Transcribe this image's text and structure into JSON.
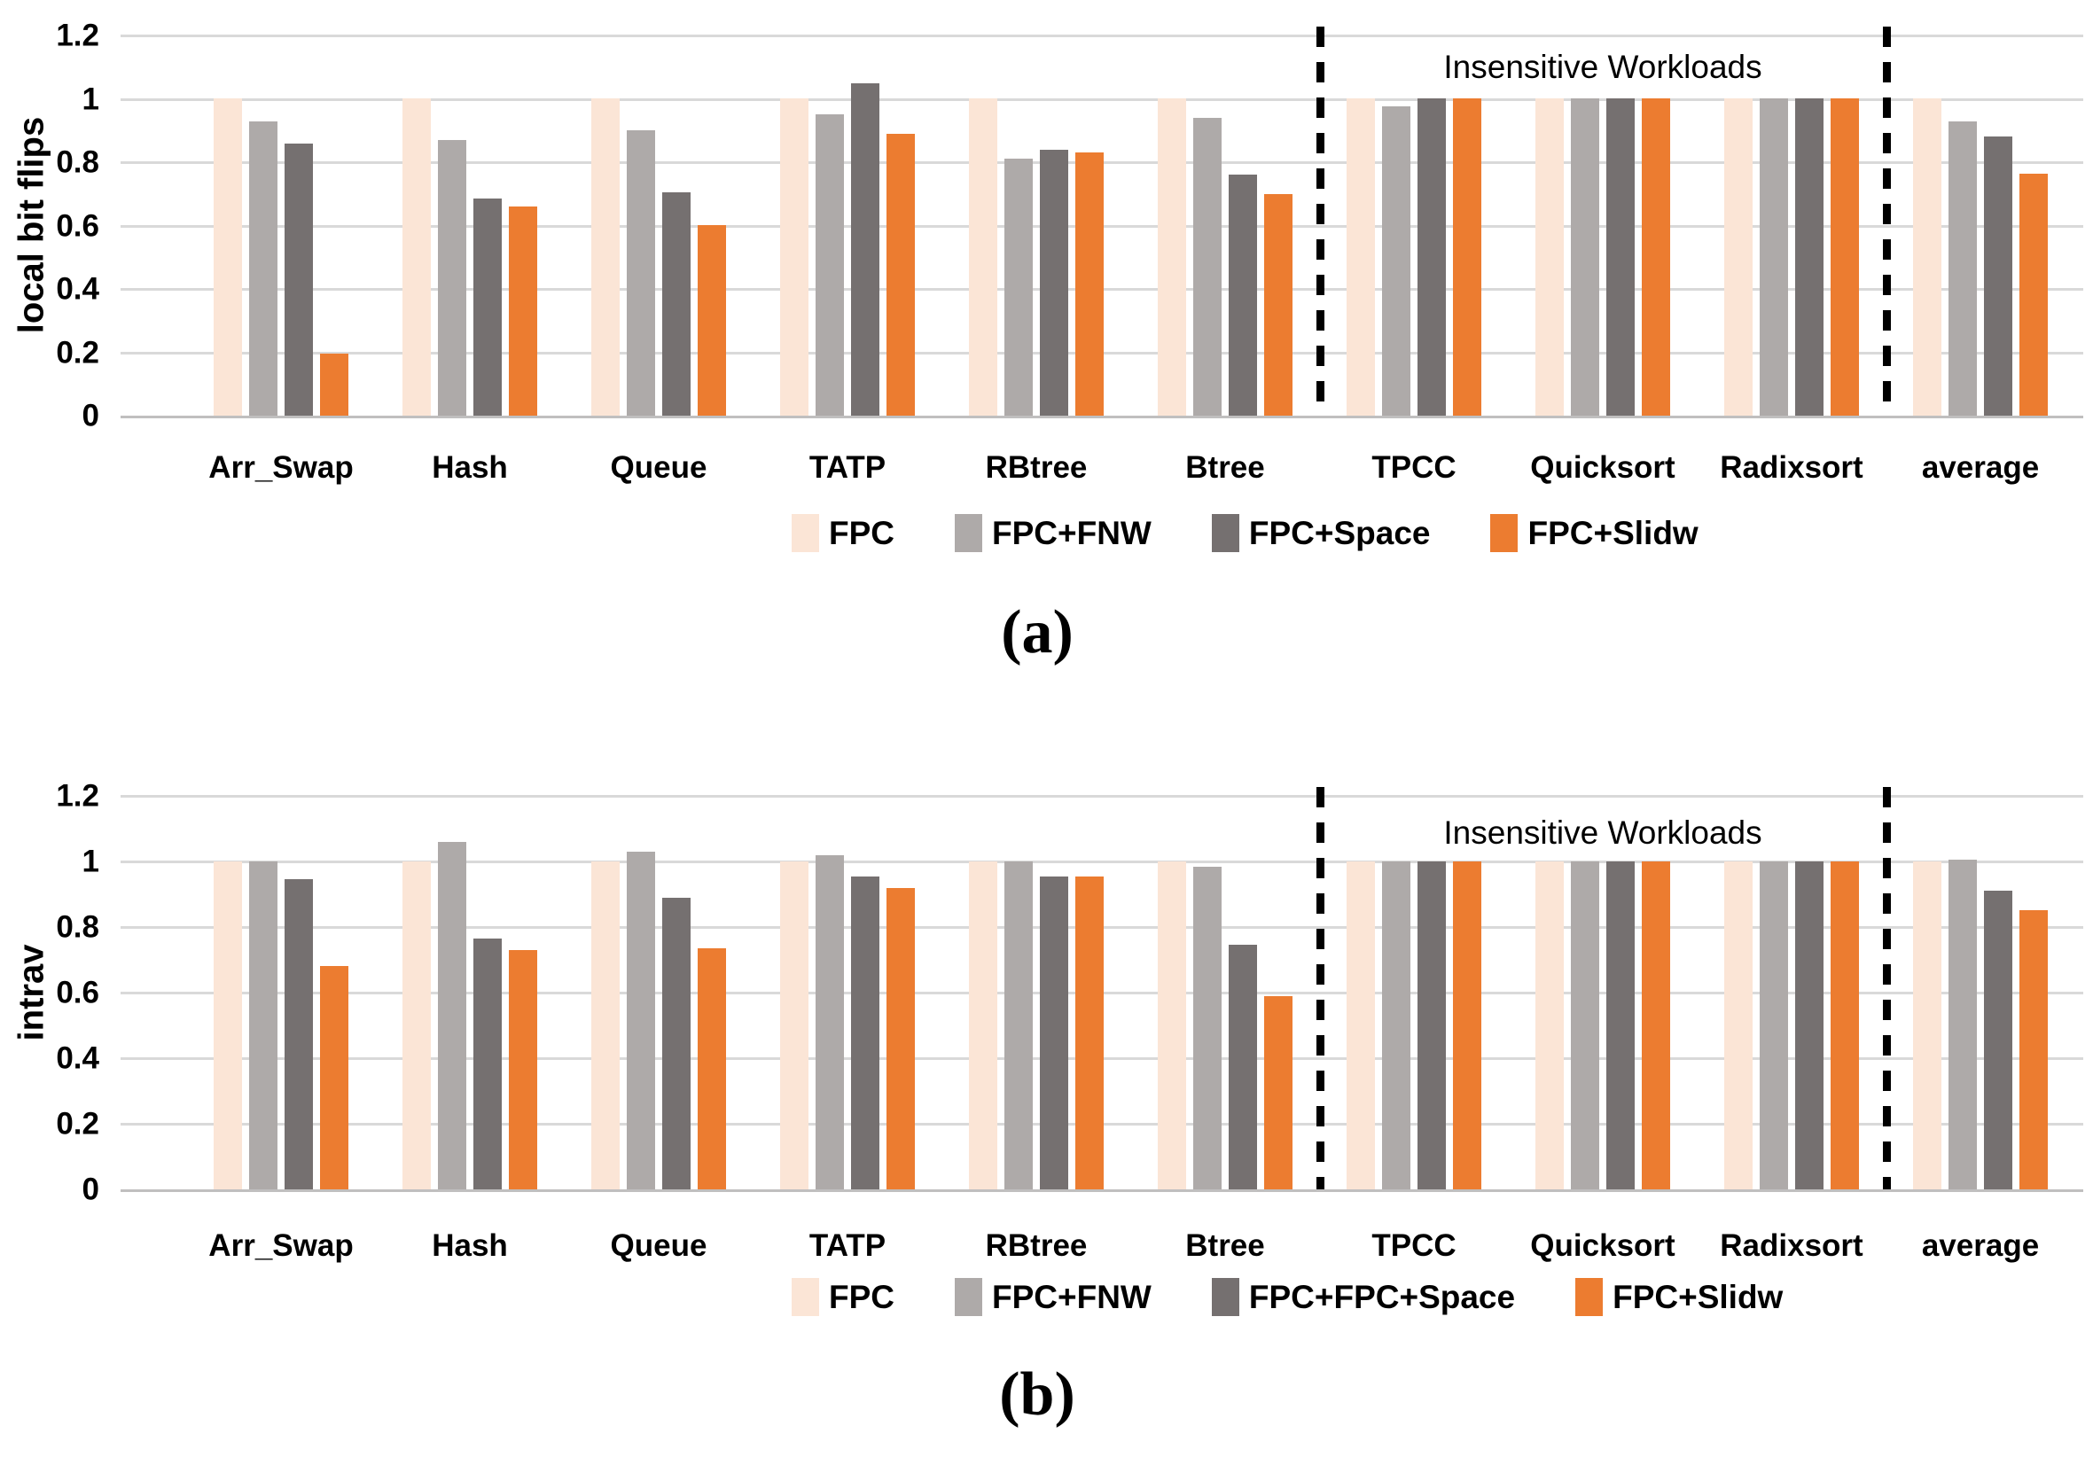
{
  "chart_data": [
    {
      "type": "bar",
      "caption": "(a)",
      "ylabel": "local bit flips",
      "xlabel": "",
      "ylim": [
        0,
        1.2
      ],
      "grid": true,
      "legend_position": "bottom",
      "y_tick_labels": [
        "0",
        "0.2",
        "0.4",
        "0.6",
        "0.8",
        "1",
        "1.2"
      ],
      "annotation": "Insensitive Workloads",
      "separators_after_category_index": [
        5,
        8
      ],
      "categories": [
        "Arr_Swap",
        "Hash",
        "Queue",
        "TATP",
        "RBtree",
        "Btree",
        "TPCC",
        "Quicksort",
        "Radixsort",
        "average"
      ],
      "series": [
        {
          "name": "FPC",
          "color": "#fbe5d6",
          "values": [
            1.0,
            1.0,
            1.0,
            1.0,
            1.0,
            1.0,
            1.0,
            1.0,
            1.0,
            1.0
          ]
        },
        {
          "name": "FPC+FNW",
          "color": "#aeaaa9",
          "values": [
            0.93,
            0.87,
            0.9,
            0.95,
            0.81,
            0.94,
            0.975,
            1.0,
            1.0,
            0.93
          ]
        },
        {
          "name": "FPC+Space",
          "color": "#757070",
          "values": [
            0.86,
            0.685,
            0.705,
            1.05,
            0.84,
            0.76,
            1.0,
            1.0,
            1.0,
            0.88
          ]
        },
        {
          "name": "FPC+Slidw",
          "color": "#ec7c30",
          "values": [
            0.195,
            0.66,
            0.6,
            0.89,
            0.83,
            0.7,
            1.0,
            1.0,
            1.0,
            0.765
          ]
        }
      ]
    },
    {
      "type": "bar",
      "caption": "(b)",
      "ylabel": "intrav",
      "xlabel": "",
      "ylim": [
        0,
        1.2
      ],
      "grid": true,
      "legend_position": "bottom",
      "y_tick_labels": [
        "0",
        "0.2",
        "0.4",
        "0.6",
        "0.8",
        "1",
        "1.2"
      ],
      "annotation": "Insensitive Workloads",
      "separators_after_category_index": [
        5,
        8
      ],
      "categories": [
        "Arr_Swap",
        "Hash",
        "Queue",
        "TATP",
        "RBtree",
        "Btree",
        "TPCC",
        "Quicksort",
        "Radixsort",
        "average"
      ],
      "series": [
        {
          "name": "FPC",
          "color": "#fbe5d6",
          "values": [
            1.0,
            1.0,
            1.0,
            1.0,
            1.0,
            1.0,
            1.0,
            1.0,
            1.0,
            1.0
          ]
        },
        {
          "name": "FPC+FNW",
          "color": "#aeaaa9",
          "values": [
            1.0,
            1.06,
            1.03,
            1.02,
            1.0,
            0.985,
            1.0,
            1.0,
            1.0,
            1.005
          ]
        },
        {
          "name": "FPC+FPC+Space",
          "color": "#757070",
          "values": [
            0.945,
            0.765,
            0.89,
            0.955,
            0.955,
            0.745,
            1.0,
            1.0,
            1.0,
            0.91
          ]
        },
        {
          "name": "FPC+Slidw",
          "color": "#ec7c30",
          "values": [
            0.68,
            0.73,
            0.735,
            0.92,
            0.955,
            0.59,
            1.0,
            1.0,
            1.0,
            0.85
          ]
        }
      ]
    }
  ],
  "style": {
    "gridline_color": "#d9d9d9",
    "baseline_color": "#c0bfbf",
    "separator_color": "#000000",
    "text_color": "#000000"
  }
}
